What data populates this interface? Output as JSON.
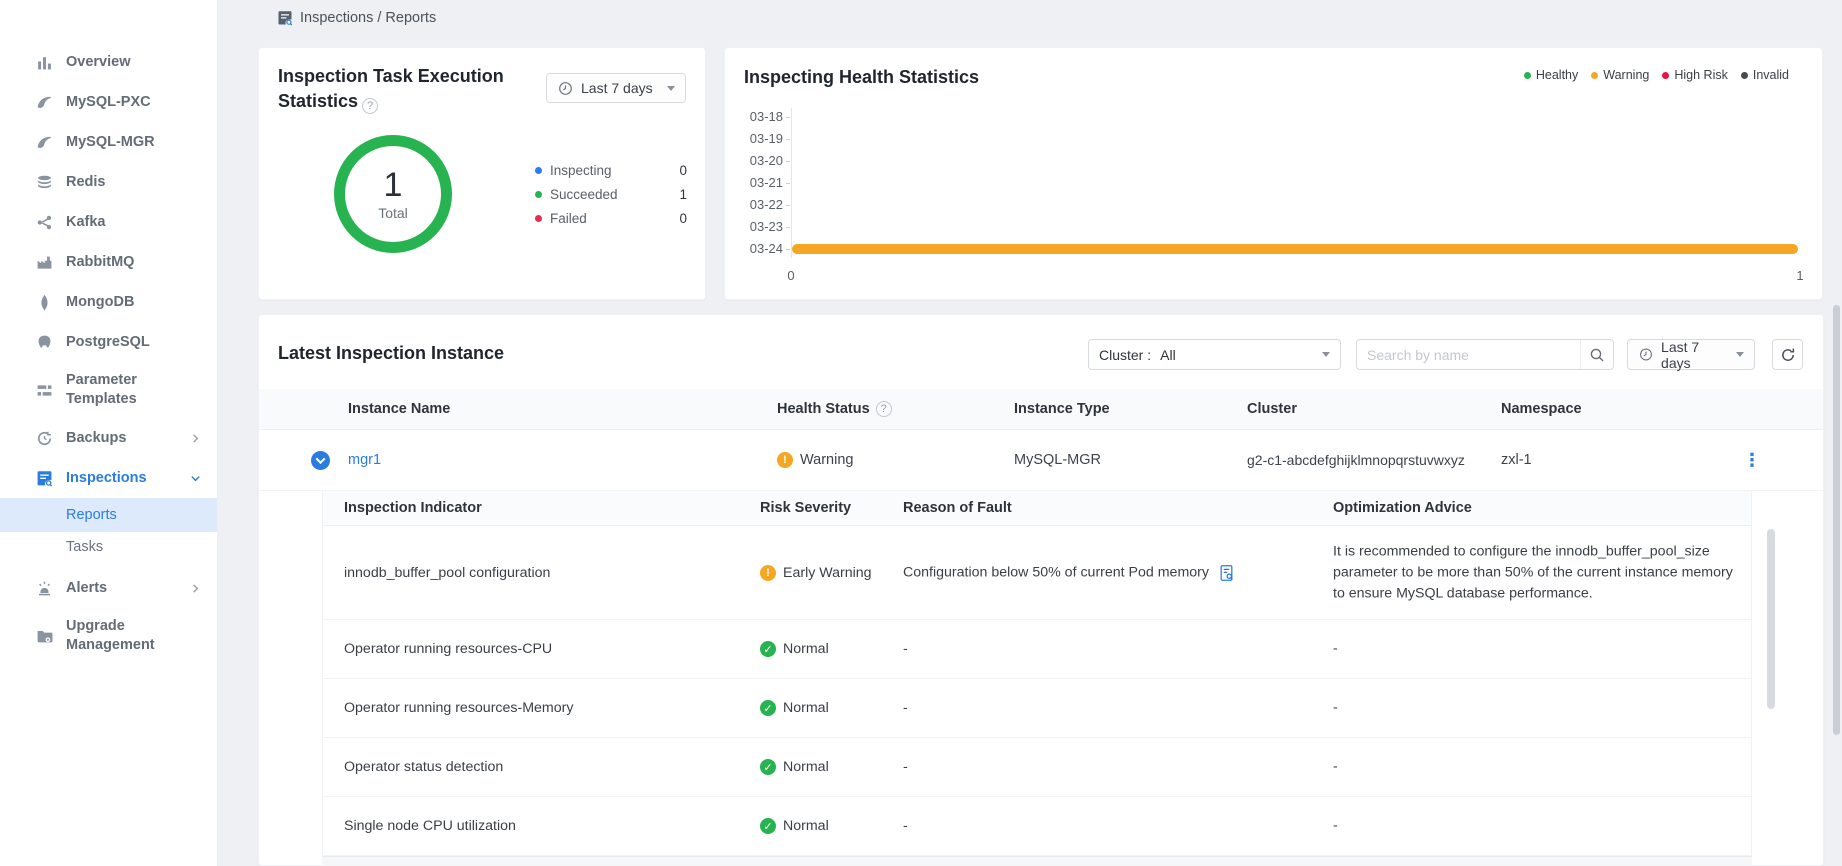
{
  "breadcrumb": {
    "text": "Inspections / Reports"
  },
  "sidebar": {
    "items": [
      {
        "label": "Overview"
      },
      {
        "label": "MySQL-PXC"
      },
      {
        "label": "MySQL-MGR"
      },
      {
        "label": "Redis"
      },
      {
        "label": "Kafka"
      },
      {
        "label": "RabbitMQ"
      },
      {
        "label": "MongoDB"
      },
      {
        "label": "PostgreSQL"
      },
      {
        "label": "Parameter Templates"
      },
      {
        "label": "Backups"
      },
      {
        "label": "Inspections"
      },
      {
        "label": "Reports"
      },
      {
        "label": "Tasks"
      },
      {
        "label": "Alerts"
      },
      {
        "label": "Upgrade Management"
      }
    ]
  },
  "task_stats": {
    "title": "Inspection Task Execution Statistics",
    "range_label": "Last 7 days",
    "total_value": "1",
    "total_label": "Total",
    "legend": [
      {
        "name": "Inspecting",
        "value": "0",
        "color": "#2e7cec"
      },
      {
        "name": "Succeeded",
        "value": "1",
        "color": "#27b350"
      },
      {
        "name": "Failed",
        "value": "0",
        "color": "#e0314b"
      }
    ]
  },
  "health_stats": {
    "title": "Inspecting Health Statistics",
    "legend": [
      {
        "name": "Healthy",
        "color": "#27b350"
      },
      {
        "name": "Warning",
        "color": "#f5a623"
      },
      {
        "name": "High Risk",
        "color": "#e5173f"
      },
      {
        "name": "Invalid",
        "color": "#454a50"
      }
    ],
    "y_labels": [
      "03-18",
      "03-19",
      "03-20",
      "03-21",
      "03-22",
      "03-23",
      "03-24"
    ],
    "x_ticks": [
      "0",
      "1"
    ]
  },
  "chart_data": [
    {
      "type": "pie",
      "title": "Inspection Task Execution Statistics",
      "center_value": 1,
      "center_label": "Total",
      "series": [
        {
          "name": "Inspecting",
          "value": 0,
          "color": "#2e7cec"
        },
        {
          "name": "Succeeded",
          "value": 1,
          "color": "#27b350"
        },
        {
          "name": "Failed",
          "value": 0,
          "color": "#e0314b"
        }
      ],
      "legend_position": "right"
    },
    {
      "type": "bar",
      "orientation": "horizontal",
      "title": "Inspecting Health Statistics",
      "categories": [
        "03-18",
        "03-19",
        "03-20",
        "03-21",
        "03-22",
        "03-23",
        "03-24"
      ],
      "series": [
        {
          "name": "Healthy",
          "color": "#27b350",
          "values": [
            0,
            0,
            0,
            0,
            0,
            0,
            0
          ]
        },
        {
          "name": "Warning",
          "color": "#f5a623",
          "values": [
            0,
            0,
            0,
            0,
            0,
            0,
            1
          ]
        },
        {
          "name": "High Risk",
          "color": "#e5173f",
          "values": [
            0,
            0,
            0,
            0,
            0,
            0,
            0
          ]
        },
        {
          "name": "Invalid",
          "color": "#454a50",
          "values": [
            0,
            0,
            0,
            0,
            0,
            0,
            0
          ]
        }
      ],
      "xlim": [
        0,
        1
      ],
      "x_ticks": [
        0,
        1
      ],
      "legend_position": "top-right"
    }
  ],
  "instances": {
    "title": "Latest Inspection Instance",
    "cluster_filter_label": "Cluster :",
    "cluster_filter_value": "All",
    "search_placeholder": "Search by name",
    "range_label": "Last 7 days",
    "columns": [
      "Instance Name",
      "Health Status",
      "Instance Type",
      "Cluster",
      "Namespace"
    ],
    "row": {
      "name": "mgr1",
      "health_status": "Warning",
      "instance_type": "MySQL-MGR",
      "cluster": "g2-c1-abcdefghijklmnopqrstuvwxyz",
      "namespace": "zxl-1"
    },
    "detail": {
      "columns": [
        "Inspection Indicator",
        "Risk Severity",
        "Reason of Fault",
        "Optimization Advice"
      ],
      "rows": [
        {
          "indicator": "innodb_buffer_pool configuration",
          "severity": "Early Warning",
          "severity_level": "warning",
          "reason": "Configuration below 50% of current Pod memory",
          "advice": "It is recommended to configure the innodb_buffer_pool_size parameter to be more than 50% of the current instance memory to ensure MySQL database performance."
        },
        {
          "indicator": "Operator running resources-CPU",
          "severity": "Normal",
          "severity_level": "normal",
          "reason": "-",
          "advice": "-"
        },
        {
          "indicator": "Operator running resources-Memory",
          "severity": "Normal",
          "severity_level": "normal",
          "reason": "-",
          "advice": "-"
        },
        {
          "indicator": "Operator status detection",
          "severity": "Normal",
          "severity_level": "normal",
          "reason": "-",
          "advice": "-"
        },
        {
          "indicator": "Single node CPU utilization",
          "severity": "Normal",
          "severity_level": "normal",
          "reason": "-",
          "advice": "-"
        }
      ]
    }
  },
  "icons": {
    "help_glyph": "?",
    "warning_glyph": "!",
    "check_glyph": "✓",
    "menu_dots_glyph": "⋮"
  },
  "colors": {
    "accent": "#2b7cdf",
    "success": "#27b350",
    "warning": "#f5a623",
    "danger": "#e0314b",
    "sidebar_selected_bg": "#dceafc"
  }
}
